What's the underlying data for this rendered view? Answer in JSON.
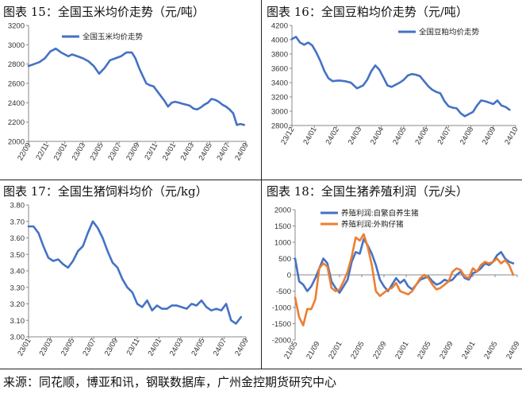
{
  "titles": {
    "fig15": "图表 15：全国玉米均价走势（元/吨）",
    "fig16": "图表 16：全国豆粕均价走势（元/吨）",
    "fig17": "图表 17：全国生猪饲料均价（元/kg）",
    "fig18": "图表 18：全国生猪养殖利润（元/头）"
  },
  "source": "来源：同花顺，博亚和讯，钢联数据库，广州金控期货研究中心",
  "colors": {
    "blue": "#4472C4",
    "orange": "#ED7D31",
    "axis": "#888888",
    "text": "#333333"
  },
  "chart_data": [
    {
      "type": "line",
      "title": "图表 15：全国玉米均价走势（元/吨）",
      "ylim": [
        2000,
        3200
      ],
      "yticks": [
        2000,
        2200,
        2400,
        2600,
        2800,
        3000,
        3200
      ],
      "xlim": [
        0,
        24
      ],
      "xtick_labels": [
        "22/09",
        "22/11",
        "23/01",
        "23/03",
        "23/05",
        "23/07",
        "23/09",
        "23/11",
        "24/01",
        "24/03",
        "24/05",
        "24/07",
        "24/09"
      ],
      "legend_position": "top-left",
      "series": [
        {
          "name": "全国玉米均价走势",
          "color": "#4472C4",
          "x": [
            0,
            0.6,
            1.2,
            1.8,
            2.4,
            3.0,
            3.6,
            4.0,
            4.4,
            4.8,
            5.4,
            6.0,
            6.6,
            7.2,
            7.8,
            8.4,
            9.0,
            9.6,
            10.2,
            10.8,
            11.4,
            11.8,
            12.2,
            12.6,
            13.0,
            13.4,
            13.8,
            14.2,
            14.6,
            15.0,
            15.4,
            15.8,
            16.2,
            16.6,
            17.0,
            17.4,
            17.8,
            18.2,
            18.6,
            19.0,
            19.4,
            19.8,
            20.2,
            20.6,
            21.0,
            21.4,
            21.8,
            22.2,
            22.6,
            23.0,
            23.4,
            23.8
          ],
          "y": [
            2780,
            2800,
            2820,
            2860,
            2930,
            2960,
            2920,
            2900,
            2880,
            2900,
            2880,
            2860,
            2830,
            2780,
            2700,
            2760,
            2840,
            2860,
            2880,
            2920,
            2920,
            2860,
            2760,
            2680,
            2600,
            2580,
            2570,
            2520,
            2470,
            2420,
            2360,
            2400,
            2410,
            2400,
            2390,
            2380,
            2370,
            2340,
            2330,
            2350,
            2380,
            2400,
            2440,
            2430,
            2410,
            2380,
            2360,
            2330,
            2290,
            2170,
            2180,
            2170
          ]
        }
      ]
    },
    {
      "type": "line",
      "title": "图表 16：全国豆粕均价走势（元/吨）",
      "ylim": [
        2800,
        4200
      ],
      "yticks": [
        2800,
        3000,
        3200,
        3400,
        3600,
        3800,
        4000,
        4200
      ],
      "xlim": [
        0,
        22
      ],
      "xtick_labels": [
        "23/12",
        "24/01",
        "24/02",
        "24/03",
        "24/04",
        "24/05",
        "24/06",
        "24/07",
        "24/08",
        "24/09",
        "24/10"
      ],
      "legend_position": "top-right",
      "series": [
        {
          "name": "全国豆粕均价走势",
          "color": "#4472C4",
          "x": [
            0,
            0.4,
            0.8,
            1.2,
            1.6,
            2.0,
            2.4,
            2.8,
            3.2,
            3.6,
            4.0,
            4.6,
            5.2,
            5.8,
            6.4,
            7.0,
            7.4,
            7.8,
            8.2,
            8.6,
            9.0,
            9.4,
            9.8,
            10.2,
            10.6,
            11.0,
            11.4,
            11.8,
            12.2,
            12.6,
            13.0,
            13.4,
            13.8,
            14.2,
            14.6,
            15.0,
            15.4,
            15.8,
            16.2,
            16.6,
            17.0,
            17.4,
            17.8,
            18.2,
            18.6,
            19.0,
            19.4,
            19.8,
            20.2,
            20.6,
            21.0,
            21.4
          ],
          "y": [
            4010,
            4040,
            3960,
            3930,
            3960,
            3920,
            3820,
            3700,
            3560,
            3460,
            3420,
            3430,
            3420,
            3400,
            3320,
            3360,
            3440,
            3560,
            3640,
            3580,
            3470,
            3360,
            3340,
            3370,
            3400,
            3440,
            3500,
            3520,
            3510,
            3490,
            3420,
            3350,
            3300,
            3270,
            3250,
            3140,
            3070,
            3050,
            3040,
            2970,
            2930,
            2960,
            2990,
            3080,
            3150,
            3140,
            3120,
            3100,
            3150,
            3080,
            3060,
            3020
          ]
        }
      ]
    },
    {
      "type": "line",
      "title": "图表 17：全国生猪饲料均价（元/kg）",
      "ylim": [
        3.0,
        3.8
      ],
      "yticks": [
        3.0,
        3.1,
        3.2,
        3.3,
        3.4,
        3.5,
        3.6,
        3.7,
        3.8
      ],
      "xlim": [
        0,
        22
      ],
      "xtick_labels": [
        "23/01",
        "23/03",
        "23/05",
        "23/07",
        "23/09",
        "23/11",
        "24/01",
        "24/03",
        "24/05",
        "24/07",
        "24/09"
      ],
      "series": [
        {
          "name": "全国生猪饲料均价",
          "color": "#4472C4",
          "x": [
            0,
            0.5,
            1.0,
            1.5,
            2.0,
            2.5,
            3.0,
            3.5,
            4.0,
            4.5,
            5.0,
            5.5,
            6.0,
            6.5,
            7.0,
            7.5,
            8.0,
            8.5,
            9.0,
            9.5,
            10.0,
            10.5,
            11.0,
            11.5,
            12.0,
            12.5,
            13.0,
            13.5,
            14.0,
            14.5,
            15.0,
            15.5,
            16.0,
            16.5,
            17.0,
            17.5,
            18.0,
            18.5,
            19.0,
            19.5,
            20.0,
            20.5,
            21.0,
            21.5
          ],
          "y": [
            3.67,
            3.67,
            3.63,
            3.55,
            3.48,
            3.46,
            3.47,
            3.44,
            3.42,
            3.46,
            3.52,
            3.55,
            3.63,
            3.7,
            3.66,
            3.6,
            3.52,
            3.45,
            3.42,
            3.35,
            3.3,
            3.27,
            3.2,
            3.18,
            3.22,
            3.16,
            3.19,
            3.17,
            3.17,
            3.19,
            3.19,
            3.18,
            3.17,
            3.2,
            3.19,
            3.22,
            3.18,
            3.16,
            3.17,
            3.16,
            3.2,
            3.1,
            3.08,
            3.12
          ]
        }
      ]
    },
    {
      "type": "line",
      "title": "图表 18：全国生猪养殖利润（元/头）",
      "ylim": [
        -2000,
        2000
      ],
      "yticks": [
        -2000,
        -1500,
        -1000,
        -500,
        0,
        500,
        1000,
        1500,
        2000
      ],
      "xlim": [
        0,
        22
      ],
      "xtick_labels": [
        "21/05",
        "21/09",
        "22/01",
        "22/05",
        "22/09",
        "23/01",
        "23/05",
        "23/09",
        "24/01",
        "24/05",
        "24/09"
      ],
      "legend_position": "top-left",
      "series": [
        {
          "name": "养殖利润:自繁自养生猪",
          "color": "#4472C4",
          "x": [
            0,
            0.4,
            0.8,
            1.2,
            1.6,
            2.0,
            2.4,
            2.8,
            3.2,
            3.6,
            4.0,
            4.4,
            4.8,
            5.2,
            5.6,
            6.0,
            6.4,
            6.8,
            7.2,
            7.6,
            8.0,
            8.4,
            8.8,
            9.2,
            9.6,
            10.0,
            10.4,
            10.8,
            11.2,
            11.6,
            12.0,
            12.4,
            12.8,
            13.2,
            13.6,
            14.0,
            14.4,
            14.8,
            15.2,
            15.6,
            16.0,
            16.4,
            16.8,
            17.2,
            17.6,
            18.0,
            18.4,
            18.8,
            19.2,
            19.6,
            20.0,
            20.4,
            20.8,
            21.2,
            21.6
          ],
          "y": [
            500,
            -200,
            -300,
            -500,
            -350,
            -100,
            200,
            500,
            350,
            -200,
            -400,
            -550,
            -350,
            -150,
            400,
            700,
            650,
            1100,
            900,
            650,
            300,
            -150,
            -350,
            -500,
            -300,
            -100,
            -250,
            -150,
            -350,
            -450,
            -300,
            -150,
            -100,
            -50,
            -200,
            -300,
            -250,
            -150,
            -200,
            -150,
            0,
            100,
            -100,
            -150,
            50,
            100,
            200,
            350,
            300,
            400,
            600,
            700,
            500,
            400,
            350
          ]
        },
        {
          "name": "养殖利润:外购仔猪",
          "color": "#ED7D31",
          "x": [
            0,
            0.4,
            0.8,
            1.2,
            1.6,
            2.0,
            2.4,
            2.8,
            3.2,
            3.6,
            4.0,
            4.4,
            4.8,
            5.2,
            5.6,
            6.0,
            6.4,
            6.8,
            7.2,
            7.6,
            8.0,
            8.4,
            8.8,
            9.2,
            9.6,
            10.0,
            10.4,
            10.8,
            11.2,
            11.6,
            12.0,
            12.4,
            12.8,
            13.2,
            13.6,
            14.0,
            14.4,
            14.8,
            15.2,
            15.6,
            16.0,
            16.4,
            16.8,
            17.2,
            17.6,
            18.0,
            18.4,
            18.8,
            19.2,
            19.6,
            20.0,
            20.4,
            20.8,
            21.2,
            21.6
          ],
          "y": [
            -700,
            -1300,
            -1550,
            -1050,
            -1050,
            -750,
            200,
            350,
            250,
            -400,
            -500,
            -450,
            -200,
            100,
            550,
            1150,
            1050,
            1250,
            850,
            300,
            -500,
            -650,
            -550,
            -450,
            -400,
            -250,
            -500,
            -550,
            -600,
            -500,
            -300,
            -100,
            0,
            -100,
            -300,
            -450,
            -400,
            -300,
            -200,
            100,
            200,
            150,
            -50,
            -100,
            200,
            100,
            300,
            400,
            350,
            400,
            500,
            350,
            450,
            300,
            0
          ]
        }
      ]
    }
  ]
}
